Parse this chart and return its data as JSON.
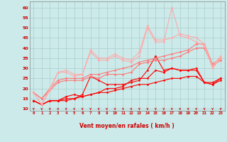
{
  "xlabel": "Vent moyen/en rafales ( km/h )",
  "bg_color": "#cceaea",
  "grid_color": "#aacccc",
  "x_values": [
    0,
    1,
    2,
    3,
    4,
    5,
    6,
    7,
    8,
    9,
    10,
    11,
    12,
    13,
    14,
    15,
    16,
    17,
    18,
    19,
    20,
    21,
    22,
    23
  ],
  "ylim": [
    9,
    63
  ],
  "yticks": [
    10,
    15,
    20,
    25,
    30,
    35,
    40,
    45,
    50,
    55,
    60
  ],
  "series": [
    {
      "color": "#ff0000",
      "lw": 0.8,
      "y": [
        14,
        12,
        14,
        14,
        14,
        15,
        16,
        17,
        18,
        18,
        19,
        20,
        21,
        22,
        22,
        23,
        24,
        25,
        25,
        26,
        26,
        23,
        23,
        25
      ]
    },
    {
      "color": "#ff0000",
      "lw": 0.8,
      "y": [
        14,
        12,
        14,
        14,
        15,
        15,
        17,
        26,
        24,
        22,
        22,
        22,
        23,
        24,
        29,
        36,
        29,
        30,
        29,
        29,
        30,
        23,
        22,
        25
      ]
    },
    {
      "color": "#ff0000",
      "lw": 0.8,
      "y": [
        14,
        12,
        14,
        14,
        16,
        17,
        16,
        17,
        18,
        20,
        20,
        21,
        24,
        25,
        25,
        29,
        28,
        30,
        29,
        29,
        29,
        23,
        22,
        24
      ]
    },
    {
      "color": "#ff7777",
      "lw": 0.8,
      "y": [
        18,
        15,
        20,
        24,
        25,
        25,
        25,
        27,
        27,
        28,
        29,
        30,
        31,
        33,
        34,
        35,
        36,
        37,
        38,
        39,
        42,
        42,
        32,
        35
      ]
    },
    {
      "color": "#ff7777",
      "lw": 0.8,
      "y": [
        18,
        15,
        19,
        23,
        24,
        24,
        24,
        26,
        25,
        27,
        27,
        27,
        28,
        32,
        33,
        34,
        34,
        35,
        36,
        38,
        40,
        40,
        31,
        34
      ]
    },
    {
      "color": "#ffaaaa",
      "lw": 0.8,
      "y": [
        18,
        12,
        20,
        28,
        29,
        27,
        27,
        39,
        35,
        35,
        37,
        35,
        34,
        38,
        51,
        44,
        44,
        45,
        47,
        46,
        45,
        42,
        31,
        36
      ]
    },
    {
      "color": "#ffaaaa",
      "lw": 0.8,
      "y": [
        18,
        12,
        19,
        28,
        28,
        26,
        27,
        38,
        34,
        34,
        36,
        34,
        33,
        36,
        50,
        43,
        43,
        60,
        46,
        45,
        43,
        41,
        30,
        35
      ]
    }
  ],
  "marker_size": 1.5
}
